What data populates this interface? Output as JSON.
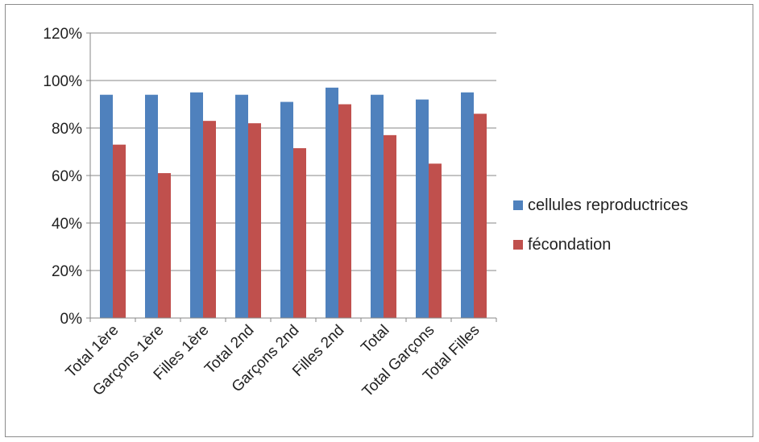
{
  "chart_data": {
    "type": "bar",
    "categories": [
      "Total 1ère",
      "Garçons 1ère",
      "Filles 1ère",
      "Total 2nd",
      "Garçons 2nd",
      "Filles 2nd",
      "Total",
      "Total Garçons",
      "Total Filles"
    ],
    "series": [
      {
        "name": "cellules reproductrices",
        "color": "#4f81bd",
        "values": [
          94,
          94,
          95,
          94,
          91,
          97,
          94,
          92,
          95
        ]
      },
      {
        "name": "fécondation",
        "color": "#c0504d",
        "values": [
          73,
          61,
          83,
          82,
          71.5,
          90,
          77,
          65,
          86
        ]
      }
    ],
    "yticks": [
      "0%",
      "20%",
      "40%",
      "60%",
      "80%",
      "100%",
      "120%"
    ],
    "ylim": [
      0,
      120
    ],
    "grid": true,
    "legend": "right"
  }
}
